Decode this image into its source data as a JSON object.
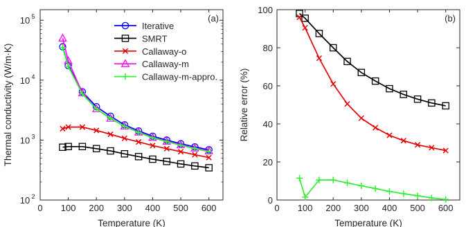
{
  "colors": {
    "Iterative": "#0000ff",
    "SMRT": "#000000",
    "Callaway-o": "#e60000",
    "Callaway-m": "#ff00ff",
    "Callaway-m-appro.": "#33ee33",
    "axis": "#262626"
  },
  "chart_data": [
    {
      "type": "line",
      "panel": "(a)",
      "xlabel": "Temperature (K)",
      "ylabel": "Thermal conductivity (W/m·K)",
      "xlim": [
        0,
        650
      ],
      "ylim": [
        100,
        150000
      ],
      "yscale": "log",
      "xticks": [
        0,
        100,
        200,
        300,
        400,
        500,
        600
      ],
      "yticks": [
        {
          "value": 100,
          "base": "10",
          "exp": "2"
        },
        {
          "value": 1000,
          "base": "10",
          "exp": "3"
        },
        {
          "value": 10000,
          "base": "10",
          "exp": "4"
        },
        {
          "value": 100000,
          "base": "10",
          "exp": "5"
        }
      ],
      "grid": false,
      "legend": "top-right",
      "series": [
        {
          "name": "Iterative",
          "marker": "circle",
          "x": [
            80,
            100,
            150,
            200,
            250,
            300,
            350,
            400,
            450,
            500,
            550,
            600
          ],
          "y": [
            36000,
            17500,
            6400,
            3600,
            2500,
            1800,
            1420,
            1160,
            1000,
            870,
            770,
            690
          ]
        },
        {
          "name": "SMRT",
          "marker": "square",
          "x": [
            80,
            100,
            150,
            200,
            250,
            300,
            350,
            400,
            450,
            500,
            550,
            600
          ],
          "y": [
            760,
            780,
            780,
            720,
            660,
            590,
            530,
            480,
            440,
            400,
            370,
            345
          ]
        },
        {
          "name": "Callaway-o",
          "marker": "cross",
          "x": [
            80,
            100,
            150,
            200,
            250,
            300,
            350,
            400,
            450,
            500,
            550,
            600
          ],
          "y": [
            1550,
            1650,
            1650,
            1450,
            1250,
            1070,
            930,
            810,
            720,
            640,
            570,
            510
          ]
        },
        {
          "name": "Callaway-m",
          "marker": "triangle",
          "x": [
            80,
            100,
            150,
            200,
            250,
            300,
            350,
            400,
            450,
            500,
            550,
            600
          ],
          "y": [
            50000,
            21000,
            6100,
            3300,
            2300,
            1700,
            1350,
            1100,
            950,
            830,
            730,
            660
          ]
        },
        {
          "name": "Callaway-m-appro.",
          "marker": "plus",
          "x": [
            80,
            100,
            150,
            200,
            250,
            300,
            350,
            400,
            450,
            500,
            550,
            600
          ],
          "y": [
            35000,
            17000,
            5900,
            3300,
            2300,
            1700,
            1340,
            1090,
            940,
            820,
            720,
            640
          ]
        }
      ]
    },
    {
      "type": "line",
      "panel": "(b)",
      "xlabel": "Temperature (K)",
      "ylabel": "Relative error (%)",
      "xlim": [
        0,
        650
      ],
      "ylim": [
        0,
        100
      ],
      "yscale": "linear",
      "xticks": [
        0,
        100,
        200,
        300,
        400,
        500,
        600
      ],
      "yticks": [
        0,
        20,
        40,
        60,
        80,
        100
      ],
      "grid": false,
      "series": [
        {
          "ref": "SMRT",
          "marker": "square",
          "x": [
            80,
            100,
            150,
            200,
            250,
            300,
            350,
            400,
            450,
            500,
            550,
            600
          ],
          "y": [
            98,
            95.5,
            87.5,
            80,
            72.8,
            67,
            62.5,
            58.5,
            55.5,
            53,
            51,
            49.5
          ]
        },
        {
          "ref": "Callaway-o",
          "marker": "cross",
          "x": [
            80,
            100,
            150,
            200,
            250,
            300,
            350,
            400,
            450,
            500,
            550,
            600
          ],
          "y": [
            96,
            90.5,
            74.5,
            61,
            50.5,
            43,
            38,
            34,
            31.2,
            29,
            27.5,
            26
          ]
        },
        {
          "ref": "Callaway-m-appro.",
          "marker": "plus",
          "x": [
            80,
            100,
            150,
            200,
            250,
            300,
            350,
            400,
            450,
            500,
            550,
            600
          ],
          "y": [
            11.5,
            1.5,
            10.5,
            10.5,
            9,
            7.5,
            6,
            4.5,
            3.3,
            2.2,
            1.1,
            0.3
          ]
        }
      ]
    }
  ]
}
